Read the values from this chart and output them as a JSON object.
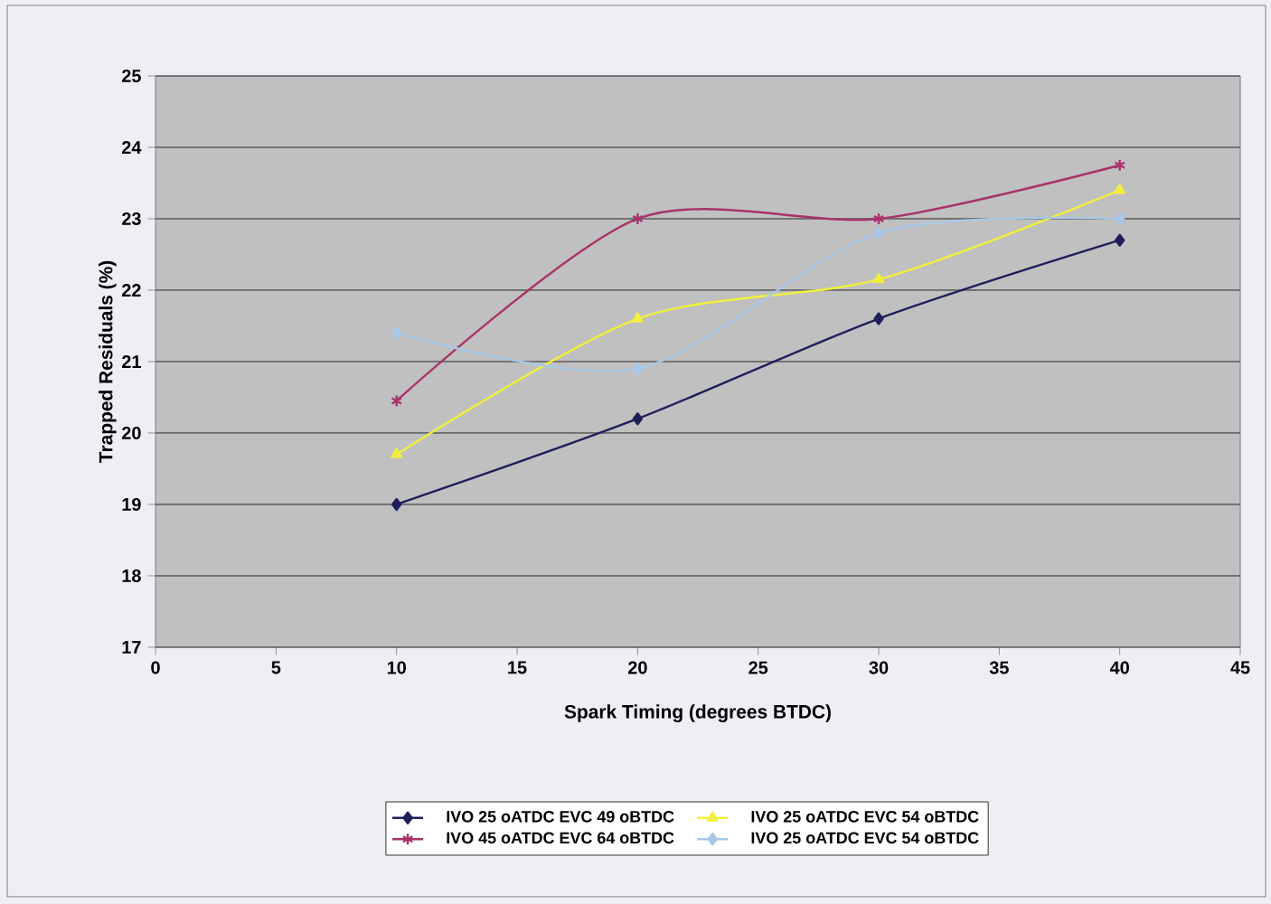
{
  "chart_data": {
    "type": "line",
    "xlabel": "Spark Timing (degrees BTDC)",
    "ylabel": "Trapped Residuals (%)",
    "xlim": [
      0,
      45
    ],
    "xticks": [
      0,
      5,
      10,
      15,
      20,
      25,
      30,
      35,
      40,
      45
    ],
    "ylim": [
      17,
      25
    ],
    "yticks": [
      17,
      18,
      19,
      20,
      21,
      22,
      23,
      24,
      25
    ],
    "grid": "y",
    "legend": "bottom",
    "line_style": "solid",
    "series": [
      {
        "name": "IVO 25 oATDC EVC 49 oBTDC",
        "color": "#1f1f5c",
        "marker": "diamond",
        "x": [
          10,
          20,
          30,
          40
        ],
        "values": [
          19.0,
          20.2,
          21.6,
          22.7
        ]
      },
      {
        "name": "IVO 25 oATDC EVC 54 oBTDC",
        "color": "#f0f03c",
        "marker": "triangle",
        "x": [
          10,
          20,
          30,
          40
        ],
        "values": [
          19.7,
          21.6,
          22.15,
          23.4
        ]
      },
      {
        "name": "IVO 45 oATDC EVC 64 oBTDC",
        "color": "#a8326a",
        "marker": "cross",
        "x": [
          10,
          20,
          30,
          40
        ],
        "values": [
          20.45,
          23.0,
          23.0,
          23.75
        ]
      },
      {
        "name": "IVO 25 oATDC EVC 54 oBTDC",
        "color": "#a8c8e8",
        "marker": "diamond",
        "x": [
          10,
          20,
          30,
          40
        ],
        "values": [
          21.4,
          20.9,
          22.8,
          23.0
        ]
      }
    ]
  }
}
